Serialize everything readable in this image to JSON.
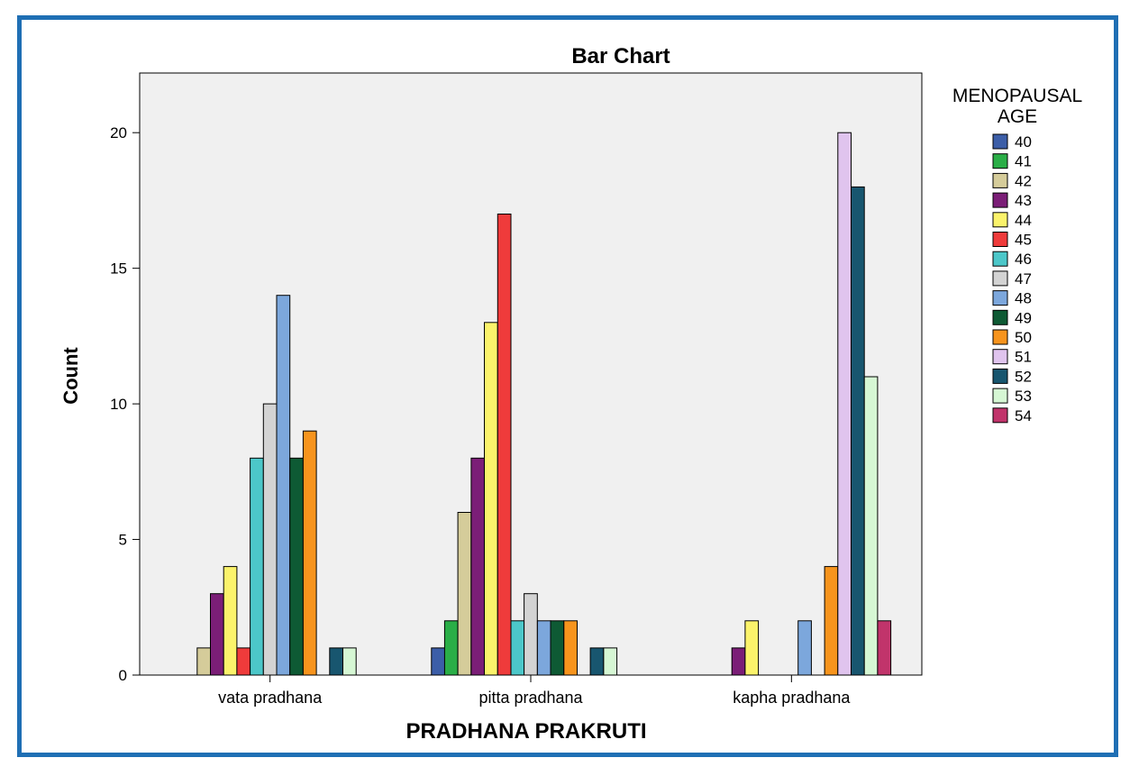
{
  "chart_data": {
    "type": "bar",
    "title": "Bar Chart",
    "xlabel": "PRADHANA PRAKRUTI",
    "ylabel": "Count",
    "ylim": [
      0,
      22.2
    ],
    "yticks": [
      0,
      5,
      10,
      15,
      20
    ],
    "categories": [
      "vata pradhana",
      "pitta pradhana",
      "kapha pradhana"
    ],
    "legend_title": [
      "MENOPAUSAL",
      "AGE"
    ],
    "legend_position": "right",
    "grid": false,
    "plot_background": "#f0f0f0",
    "series": [
      {
        "name": "40",
        "color": "#3c5ea8",
        "values": [
          0,
          1,
          0
        ]
      },
      {
        "name": "41",
        "color": "#2aae47",
        "values": [
          0,
          2,
          0
        ]
      },
      {
        "name": "42",
        "color": "#d5cc9a",
        "values": [
          1,
          6,
          0
        ]
      },
      {
        "name": "43",
        "color": "#7b1e77",
        "values": [
          3,
          8,
          1
        ]
      },
      {
        "name": "44",
        "color": "#fbf36b",
        "values": [
          4,
          13,
          2
        ]
      },
      {
        "name": "45",
        "color": "#ef3b3b",
        "values": [
          1,
          17,
          0
        ]
      },
      {
        "name": "46",
        "color": "#4cc7c9",
        "values": [
          8,
          2,
          0
        ]
      },
      {
        "name": "47",
        "color": "#d3d3d3",
        "values": [
          10,
          3,
          0
        ]
      },
      {
        "name": "48",
        "color": "#7ca7dc",
        "values": [
          14,
          2,
          2
        ]
      },
      {
        "name": "49",
        "color": "#0e5a34",
        "values": [
          8,
          2,
          0
        ]
      },
      {
        "name": "50",
        "color": "#f7941d",
        "values": [
          9,
          2,
          4
        ]
      },
      {
        "name": "51",
        "color": "#e0c4ee",
        "values": [
          0,
          0,
          20
        ]
      },
      {
        "name": "52",
        "color": "#18566f",
        "values": [
          1,
          1,
          18
        ]
      },
      {
        "name": "53",
        "color": "#d6f7d4",
        "values": [
          1,
          1,
          11
        ]
      },
      {
        "name": "54",
        "color": "#c1346b",
        "values": [
          0,
          0,
          2
        ]
      }
    ]
  }
}
